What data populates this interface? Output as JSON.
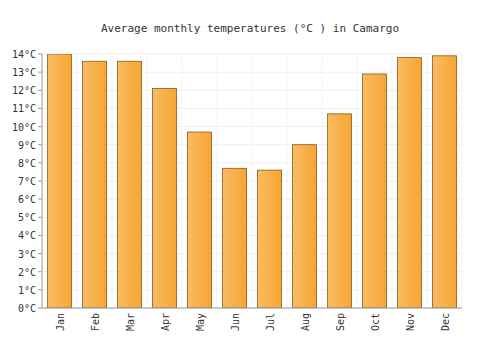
{
  "chart_data": {
    "type": "bar",
    "title": "Average monthly temperatures (°C ) in Camargo",
    "categories": [
      "Jan",
      "Feb",
      "Mar",
      "Apr",
      "May",
      "Jun",
      "Jul",
      "Aug",
      "Sep",
      "Oct",
      "Nov",
      "Dec"
    ],
    "values": [
      14.0,
      13.6,
      13.6,
      12.1,
      9.7,
      7.7,
      7.6,
      9.0,
      10.7,
      12.9,
      13.8,
      13.9
    ],
    "color": "#f7a531",
    "ylim": [
      0,
      14
    ],
    "yticks": [
      {
        "value": 0,
        "label": "0°C"
      },
      {
        "value": 1,
        "label": "1°C"
      },
      {
        "value": 2,
        "label": "2°C"
      },
      {
        "value": 3,
        "label": "3°C"
      },
      {
        "value": 4,
        "label": "4°C"
      },
      {
        "value": 5,
        "label": "5°C"
      },
      {
        "value": 6,
        "label": "6°C"
      },
      {
        "value": 7,
        "label": "7°C"
      },
      {
        "value": 8,
        "label": "8°C"
      },
      {
        "value": 9,
        "label": "9°C"
      },
      {
        "value": 10,
        "label": "10°C"
      },
      {
        "value": 11,
        "label": "11°C"
      },
      {
        "value": 12,
        "label": "12°C"
      },
      {
        "value": 13,
        "label": "13°C"
      },
      {
        "value": 14,
        "label": "14°C"
      }
    ],
    "grid": true
  }
}
